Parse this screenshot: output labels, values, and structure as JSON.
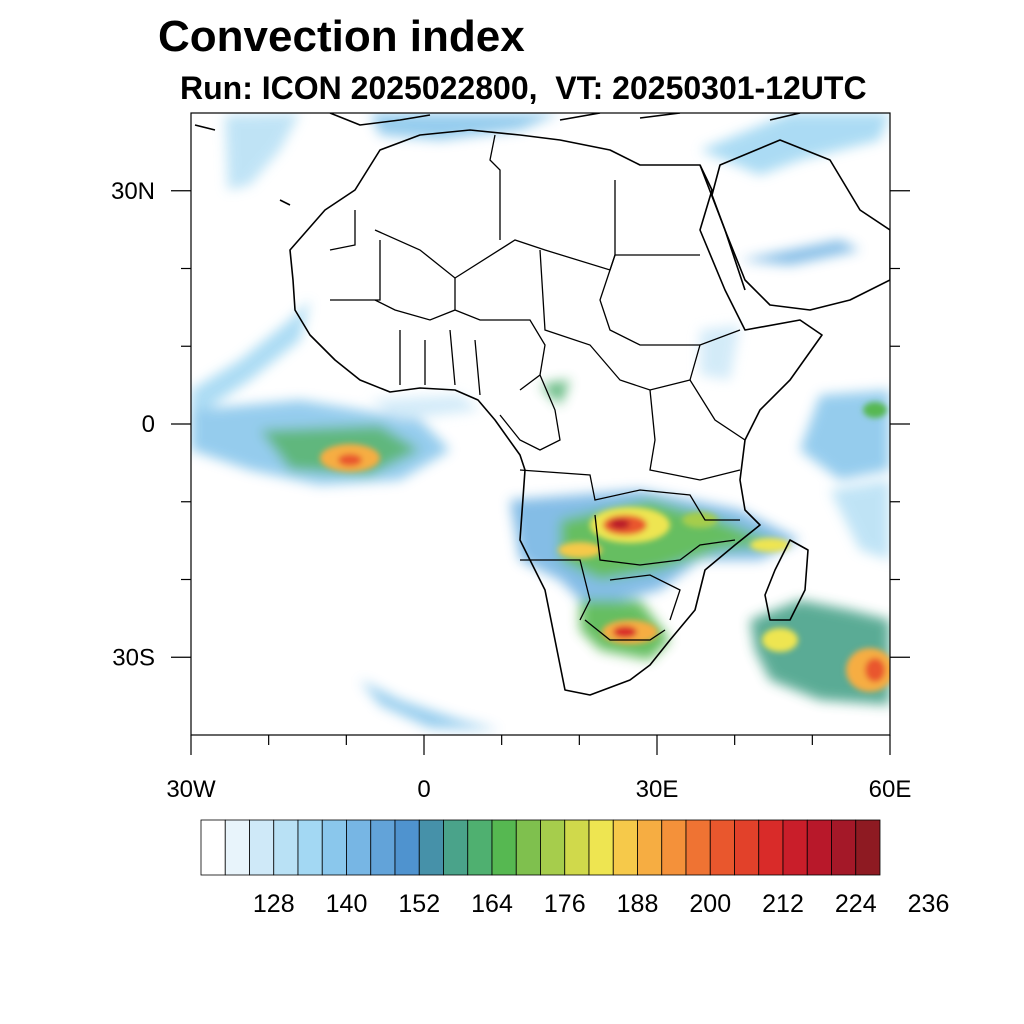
{
  "title": "Convection index",
  "subtitle": "Run: ICON 2025022800,  VT: 20250301-12UTC",
  "map": {
    "lat_ticks": [
      {
        "value": 30,
        "label": "30N"
      },
      {
        "value": 0,
        "label": "0"
      },
      {
        "value": -30,
        "label": "30S"
      }
    ],
    "lon_ticks": [
      {
        "value": -30,
        "label": "30W"
      },
      {
        "value": 0,
        "label": "0"
      },
      {
        "value": 30,
        "label": "30E"
      },
      {
        "value": 60,
        "label": "60E"
      }
    ],
    "lon_range": [
      -30,
      60
    ],
    "lat_range": [
      -40,
      40
    ],
    "minor_tick_step_deg": 10
  },
  "colorbar": {
    "colors": [
      "#ffffff",
      "#e8f4fb",
      "#cfe9f8",
      "#b9e1f5",
      "#a3d8f3",
      "#8ac7ec",
      "#77b6e4",
      "#62a3d9",
      "#4f93cf",
      "#4691a9",
      "#4aa38a",
      "#4fb070",
      "#56b851",
      "#7fc04e",
      "#a6cd4c",
      "#d0d94b",
      "#eee551",
      "#f6c94a",
      "#f6ad42",
      "#f4913a",
      "#ef7333",
      "#e9572d",
      "#e2412a",
      "#d92b29",
      "#c91e2a",
      "#b8182a",
      "#a41828",
      "#8e1a22"
    ],
    "labels": [
      {
        "edge": 3,
        "text": "128"
      },
      {
        "edge": 6,
        "text": "140"
      },
      {
        "edge": 9,
        "text": "152"
      },
      {
        "edge": 12,
        "text": "164"
      },
      {
        "edge": 15,
        "text": "176"
      },
      {
        "edge": 18,
        "text": "188"
      },
      {
        "edge": 21,
        "text": "200"
      },
      {
        "edge": 24,
        "text": "212"
      },
      {
        "edge": 27,
        "text": "224"
      },
      {
        "edge": 30,
        "text": "236"
      }
    ]
  }
}
